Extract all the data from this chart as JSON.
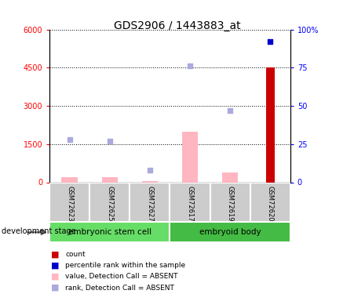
{
  "title": "GDS2906 / 1443883_at",
  "samples": [
    "GSM72623",
    "GSM72625",
    "GSM72627",
    "GSM72617",
    "GSM72619",
    "GSM72620"
  ],
  "groups": [
    "embryonic stem cell",
    "embryoid body"
  ],
  "bar_values": [
    200,
    200,
    50,
    2000,
    400,
    4500
  ],
  "rank_pct": [
    28,
    27,
    8,
    76,
    47,
    92
  ],
  "ylim_left": [
    0,
    6000
  ],
  "ylim_right": [
    0,
    100
  ],
  "yticks_left": [
    0,
    1500,
    3000,
    4500,
    6000
  ],
  "ytick_labels_left": [
    "0",
    "1500",
    "3000",
    "4500",
    "6000"
  ],
  "yticks_right": [
    0,
    25,
    50,
    75,
    100
  ],
  "ytick_labels_right": [
    "0",
    "25",
    "50",
    "75",
    "100%"
  ],
  "absent_bar_color": "#ffb6c1",
  "absent_rank_color": "#aaaadd",
  "count_color": "#cc0000",
  "pct_color": "#0000cc",
  "group1_color": "#66dd66",
  "group2_color": "#44bb44",
  "label_bg": "#cccccc"
}
